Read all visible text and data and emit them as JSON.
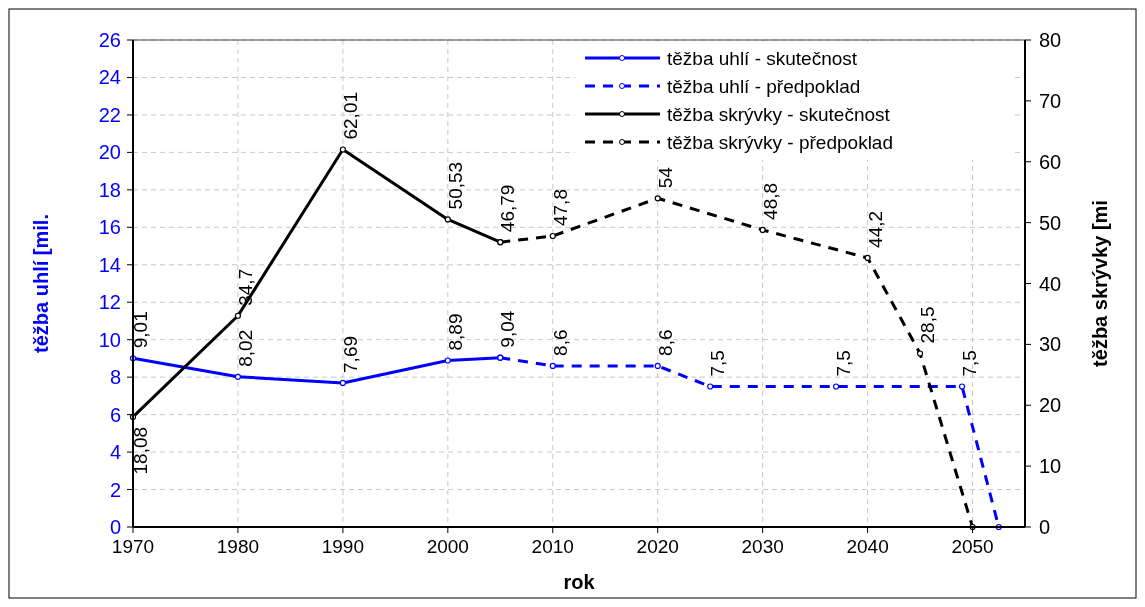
{
  "chart_data": {
    "type": "line",
    "xlabel": "rok",
    "ylabel": "těžba uhlí [mil.",
    "y2label": "těžba skrývky [mi",
    "xlim": [
      1970,
      2055
    ],
    "xticks": [
      1970,
      1980,
      1990,
      2000,
      2010,
      2020,
      2030,
      2040,
      2050
    ],
    "ylim": [
      0,
      26
    ],
    "yticks": [
      0,
      2,
      4,
      6,
      8,
      10,
      12,
      14,
      16,
      18,
      20,
      22,
      24,
      26
    ],
    "y2lim": [
      0,
      80
    ],
    "y2ticks": [
      0,
      10,
      20,
      30,
      40,
      50,
      60,
      70,
      80
    ],
    "grid": true,
    "legend": "top right",
    "marker": "circle",
    "series": [
      {
        "name": "těžba uhlí - skutečnost",
        "color": "#0000ff",
        "line_style": "solid",
        "x": [
          1970,
          1980,
          1990,
          2000,
          2005
        ],
        "values": [
          9.01,
          8.02,
          7.69,
          8.89,
          9.04
        ],
        "value_labels": [
          "9,01",
          "8,02",
          "7,69",
          "8,89",
          "9,04"
        ]
      },
      {
        "name": "těžba uhlí - předpoklad",
        "color": "#0000ff",
        "line_style": "dashed",
        "x": [
          2005,
          2010,
          2020,
          2025,
          2037,
          2049,
          2052.5
        ],
        "values": [
          9.04,
          8.6,
          8.6,
          7.5,
          7.5,
          7.5,
          0
        ],
        "value_labels": [
          null,
          "8,6",
          "8,6",
          "7,5",
          "7,5",
          "7,5",
          null
        ]
      },
      {
        "name": "těžba skrývky - skutečnost",
        "color": "#000000",
        "line_style": "solid",
        "axis": "y2",
        "x": [
          1970,
          1980,
          1990,
          2000,
          2005
        ],
        "values": [
          18.08,
          34.7,
          62.01,
          50.53,
          46.79
        ],
        "value_labels": [
          "18,08",
          "34,7",
          "62,01",
          "50,53",
          "46,79"
        ]
      },
      {
        "name": "těžba skrývky - předpoklad",
        "color": "#000000",
        "line_style": "dashed",
        "axis": "y2",
        "x": [
          2005,
          2010,
          2020,
          2030,
          2040,
          2045,
          2050
        ],
        "values": [
          46.79,
          47.8,
          54,
          48.8,
          44.2,
          28.5,
          0
        ],
        "value_labels": [
          null,
          "47,8",
          "54",
          "48,8",
          "44,2",
          "28,5",
          null
        ]
      }
    ]
  }
}
